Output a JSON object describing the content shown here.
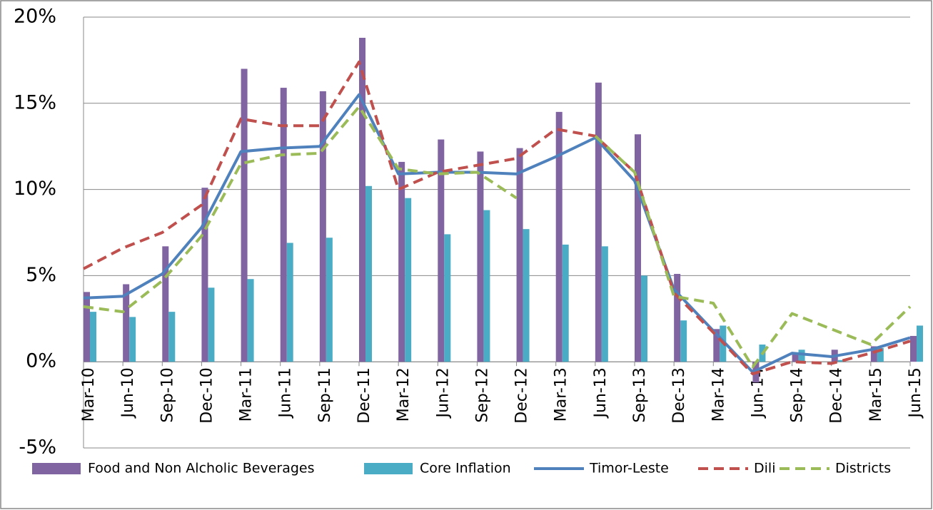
{
  "chart_data": {
    "type": "bar-line",
    "categories": [
      "Mar-10",
      "Jun-10",
      "Sep-10",
      "Dec-10",
      "Mar-11",
      "Jun-11",
      "Sep-11",
      "Dec-11",
      "Mar-12",
      "Jun-12",
      "Sep-12",
      "Dec-12",
      "Mar-13",
      "Jun-13",
      "Sep-13",
      "Dec-13",
      "Mar-14",
      "Jun-14",
      "Sep-14",
      "Dec-14",
      "Mar-15",
      "Jun-15"
    ],
    "series": [
      {
        "name": "Food and Non Alcholic Beverages",
        "type": "bar",
        "color": "#8064a2",
        "values": [
          4.05,
          4.5,
          6.7,
          10.1,
          17.0,
          15.9,
          15.7,
          18.8,
          11.6,
          12.9,
          12.2,
          12.4,
          14.5,
          16.2,
          13.2,
          5.1,
          1.9,
          -1.2,
          0.5,
          0.7,
          0.9,
          1.5
        ]
      },
      {
        "name": "Core Inflation",
        "type": "bar",
        "color": "#4bacc6",
        "values": [
          2.9,
          2.6,
          2.9,
          4.3,
          4.8,
          6.9,
          7.2,
          10.2,
          9.5,
          7.4,
          8.8,
          7.7,
          6.8,
          6.7,
          5.0,
          2.4,
          2.1,
          1.0,
          0.7,
          0.1,
          0.8,
          2.1
        ]
      },
      {
        "name": "Timor-Leste",
        "type": "line",
        "dashed": false,
        "color": "#4f81bd",
        "values": [
          3.7,
          3.8,
          5.1,
          7.8,
          12.2,
          12.4,
          12.5,
          15.5,
          10.9,
          11.0,
          11.0,
          10.9,
          11.9,
          13.0,
          10.5,
          4.2,
          1.8,
          -0.6,
          0.5,
          0.3,
          0.7,
          1.4
        ]
      },
      {
        "name": "Dili",
        "type": "line",
        "dashed": true,
        "color": "#c0504d",
        "values": [
          5.4,
          6.6,
          7.5,
          9.1,
          14.1,
          13.7,
          13.7,
          17.4,
          10.0,
          11.0,
          11.4,
          11.8,
          13.5,
          13.1,
          11.0,
          4.0,
          1.7,
          -0.7,
          0.0,
          -0.1,
          0.5,
          1.2
        ]
      },
      {
        "name": "Districts",
        "type": "line",
        "dashed": true,
        "color": "#9bbb59",
        "values": [
          3.2,
          2.9,
          4.7,
          7.3,
          11.5,
          12.0,
          12.1,
          14.8,
          11.2,
          10.9,
          11.0,
          9.5,
          null,
          13.1,
          11.0,
          3.8,
          3.4,
          -0.3,
          2.8,
          1.9,
          1.0,
          3.2
        ]
      }
    ],
    "ylim": [
      -5,
      20
    ],
    "yticks": [
      {
        "value": -5,
        "label": "-5%"
      },
      {
        "value": 0,
        "label": "0%"
      },
      {
        "value": 5,
        "label": "5%"
      },
      {
        "value": 10,
        "label": "10%"
      },
      {
        "value": 15,
        "label": "15%"
      },
      {
        "value": 20,
        "label": "20%"
      }
    ],
    "grid": true,
    "legend": "bottom"
  }
}
